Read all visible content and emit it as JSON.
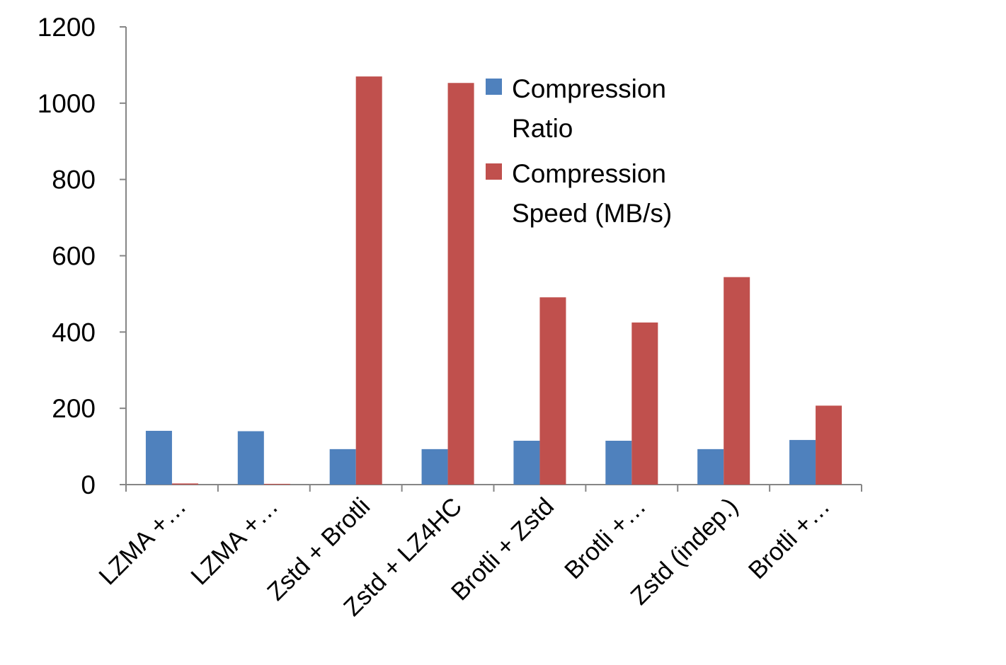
{
  "chart_data": {
    "type": "bar",
    "categories": [
      "LZMA +…",
      "LZMA +…",
      "Zstd + Brotli",
      "Zstd + LZ4HC",
      "Brotli + Zstd",
      "Brotli +…",
      "Zstd (indep.)",
      "Brotli +…"
    ],
    "series": [
      {
        "name": "Compression Ratio",
        "color": "#4f81bd",
        "values": [
          141,
          140,
          93,
          93,
          115,
          115,
          93,
          117
        ]
      },
      {
        "name": "Compression Speed (MB/s)",
        "color": "#c0504d",
        "values": [
          3,
          2,
          1070,
          1053,
          491,
          425,
          544,
          207
        ]
      }
    ],
    "ylim": [
      0,
      1200
    ],
    "yticks": [
      0,
      200,
      400,
      600,
      800,
      1000,
      1200
    ],
    "grid": false,
    "legend": "upper-right"
  }
}
